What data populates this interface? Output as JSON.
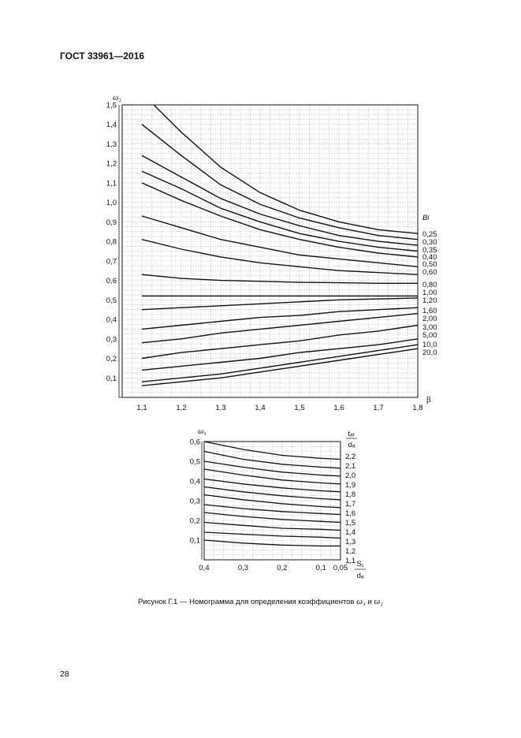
{
  "header": {
    "title": "ГОСТ 33961—2016"
  },
  "caption": {
    "prefix": "Рисунок Г.1 — Номограмма для определения коэффициентов ",
    "sym1": "ω₁",
    "and": " и ",
    "sym2": "ω₂"
  },
  "page_number": "28",
  "chart_data": [
    {
      "type": "line",
      "ylabel": "ω₂",
      "xlabel": "β",
      "legend_title": "Bi",
      "xlim": [
        1.05,
        1.8
      ],
      "ylim": [
        0,
        1.5
      ],
      "x_ticks": [
        "1,1",
        "1,2",
        "1,3",
        "1,4",
        "1,5",
        "1,6",
        "1,7",
        "1,8"
      ],
      "y_ticks": [
        "0,1",
        "0,2",
        "0,3",
        "0,4",
        "0,5",
        "0,6",
        "0,7",
        "0,8",
        "0,9",
        "1,0",
        "1,1",
        "1,2",
        "1,3",
        "1,4",
        "1,5"
      ],
      "series": [
        {
          "name": "0,25",
          "x": [
            1.13,
            1.2,
            1.3,
            1.4,
            1.5,
            1.6,
            1.7,
            1.8
          ],
          "y": [
            1.5,
            1.36,
            1.18,
            1.05,
            0.96,
            0.9,
            0.86,
            0.84
          ]
        },
        {
          "name": "0,30",
          "x": [
            1.1,
            1.2,
            1.3,
            1.4,
            1.5,
            1.6,
            1.7,
            1.8
          ],
          "y": [
            1.4,
            1.24,
            1.09,
            0.99,
            0.92,
            0.87,
            0.83,
            0.81
          ]
        },
        {
          "name": "0,35",
          "x": [
            1.1,
            1.2,
            1.3,
            1.4,
            1.5,
            1.6,
            1.7,
            1.8
          ],
          "y": [
            1.24,
            1.13,
            1.02,
            0.94,
            0.88,
            0.83,
            0.8,
            0.78
          ]
        },
        {
          "name": "0,40",
          "x": [
            1.1,
            1.2,
            1.3,
            1.4,
            1.5,
            1.6,
            1.7,
            1.8
          ],
          "y": [
            1.16,
            1.07,
            0.97,
            0.9,
            0.84,
            0.8,
            0.77,
            0.75
          ]
        },
        {
          "name": "0,50",
          "x": [
            1.1,
            1.2,
            1.3,
            1.4,
            1.5,
            1.6,
            1.7,
            1.8
          ],
          "y": [
            1.1,
            1.01,
            0.93,
            0.86,
            0.81,
            0.77,
            0.74,
            0.72
          ]
        },
        {
          "name": "0,60",
          "x": [
            1.1,
            1.2,
            1.3,
            1.4,
            1.5,
            1.6,
            1.7,
            1.8
          ],
          "y": [
            0.93,
            0.87,
            0.81,
            0.77,
            0.73,
            0.71,
            0.69,
            0.67
          ]
        },
        {
          "name": "",
          "x": [
            1.1,
            1.2,
            1.3,
            1.4,
            1.5,
            1.6,
            1.7,
            1.8
          ],
          "y": [
            0.81,
            0.76,
            0.72,
            0.69,
            0.67,
            0.65,
            0.64,
            0.63
          ]
        },
        {
          "name": "0,80",
          "x": [
            1.1,
            1.2,
            1.3,
            1.4,
            1.5,
            1.6,
            1.7,
            1.8
          ],
          "y": [
            0.63,
            0.61,
            0.6,
            0.595,
            0.59,
            0.588,
            0.585,
            0.585
          ]
        },
        {
          "name": "1,00",
          "x": [
            1.1,
            1.8
          ],
          "y": [
            0.52,
            0.52
          ]
        },
        {
          "name": "1,20",
          "x": [
            1.1,
            1.2,
            1.3,
            1.4,
            1.5,
            1.6,
            1.7,
            1.8
          ],
          "y": [
            0.45,
            0.46,
            0.47,
            0.48,
            0.49,
            0.5,
            0.505,
            0.51
          ]
        },
        {
          "name": "1,60",
          "x": [
            1.1,
            1.2,
            1.3,
            1.4,
            1.5,
            1.6,
            1.7,
            1.8
          ],
          "y": [
            0.35,
            0.37,
            0.39,
            0.41,
            0.42,
            0.44,
            0.45,
            0.46
          ]
        },
        {
          "name": "2,00",
          "x": [
            1.1,
            1.2,
            1.3,
            1.4,
            1.5,
            1.6,
            1.7,
            1.8
          ],
          "y": [
            0.28,
            0.3,
            0.33,
            0.35,
            0.37,
            0.39,
            0.41,
            0.43
          ]
        },
        {
          "name": "3,00",
          "x": [
            1.1,
            1.2,
            1.3,
            1.4,
            1.5,
            1.6,
            1.7,
            1.8
          ],
          "y": [
            0.2,
            0.23,
            0.25,
            0.27,
            0.29,
            0.32,
            0.34,
            0.37
          ]
        },
        {
          "name": "5,00",
          "x": [
            1.1,
            1.2,
            1.3,
            1.4,
            1.5,
            1.6,
            1.7,
            1.8
          ],
          "y": [
            0.14,
            0.16,
            0.18,
            0.2,
            0.23,
            0.25,
            0.27,
            0.3
          ]
        },
        {
          "name": "10,0",
          "x": [
            1.1,
            1.2,
            1.3,
            1.4,
            1.5,
            1.6,
            1.7,
            1.8
          ],
          "y": [
            0.08,
            0.1,
            0.12,
            0.15,
            0.18,
            0.21,
            0.24,
            0.27
          ]
        },
        {
          "name": "20,0",
          "x": [
            1.1,
            1.2,
            1.3,
            1.4,
            1.5,
            1.6,
            1.7,
            1.8
          ],
          "y": [
            0.06,
            0.08,
            0.1,
            0.13,
            0.16,
            0.19,
            0.22,
            0.25
          ]
        }
      ]
    },
    {
      "type": "line",
      "ylabel": "ω₁",
      "xlabel_numerator": "S₁",
      "xlabel_denominator": "dₐ",
      "legend_title_numerator": "tₐₜ",
      "legend_title_denominator": "dₐ",
      "x_reversed": true,
      "xlim": [
        0.4,
        0.05
      ],
      "ylim": [
        0,
        0.6
      ],
      "x_ticks": [
        "0,4",
        "0,3",
        "0,2",
        "0,1",
        "0,05"
      ],
      "y_ticks": [
        "0,1",
        "0,2",
        "0,3",
        "0,4",
        "0,5",
        "0,6"
      ],
      "series": [
        {
          "name": "2,2",
          "x": [
            0.4,
            0.3,
            0.2,
            0.1,
            0.05
          ],
          "y": [
            0.6,
            0.56,
            0.53,
            0.515,
            0.51
          ]
        },
        {
          "name": "2,1",
          "x": [
            0.4,
            0.3,
            0.2,
            0.1,
            0.05
          ],
          "y": [
            0.55,
            0.51,
            0.485,
            0.47,
            0.465
          ]
        },
        {
          "name": "2,0",
          "x": [
            0.4,
            0.3,
            0.2,
            0.1,
            0.05
          ],
          "y": [
            0.5,
            0.47,
            0.445,
            0.43,
            0.425
          ]
        },
        {
          "name": "1,9",
          "x": [
            0.4,
            0.3,
            0.2,
            0.1,
            0.05
          ],
          "y": [
            0.46,
            0.43,
            0.405,
            0.39,
            0.385
          ]
        },
        {
          "name": "1,8",
          "x": [
            0.4,
            0.3,
            0.2,
            0.1,
            0.05
          ],
          "y": [
            0.41,
            0.385,
            0.365,
            0.35,
            0.345
          ]
        },
        {
          "name": "1,7",
          "x": [
            0.4,
            0.3,
            0.2,
            0.1,
            0.05
          ],
          "y": [
            0.37,
            0.345,
            0.325,
            0.31,
            0.305
          ]
        },
        {
          "name": "1,6",
          "x": [
            0.4,
            0.3,
            0.2,
            0.1,
            0.05
          ],
          "y": [
            0.33,
            0.305,
            0.285,
            0.27,
            0.265
          ]
        },
        {
          "name": "1,5",
          "x": [
            0.4,
            0.3,
            0.2,
            0.1,
            0.05
          ],
          "y": [
            0.28,
            0.26,
            0.245,
            0.235,
            0.23
          ]
        },
        {
          "name": "1,4",
          "x": [
            0.4,
            0.3,
            0.2,
            0.1,
            0.05
          ],
          "y": [
            0.24,
            0.22,
            0.205,
            0.195,
            0.19
          ]
        },
        {
          "name": "1,3",
          "x": [
            0.4,
            0.3,
            0.2,
            0.1,
            0.05
          ],
          "y": [
            0.19,
            0.175,
            0.16,
            0.155,
            0.15
          ]
        },
        {
          "name": "1,2",
          "x": [
            0.4,
            0.3,
            0.2,
            0.1,
            0.05
          ],
          "y": [
            0.14,
            0.13,
            0.12,
            0.115,
            0.11
          ]
        },
        {
          "name": "1,1",
          "x": [
            0.4,
            0.3,
            0.2,
            0.1,
            0.05
          ],
          "y": [
            0.1,
            0.085,
            0.075,
            0.07,
            0.07
          ]
        }
      ]
    }
  ]
}
